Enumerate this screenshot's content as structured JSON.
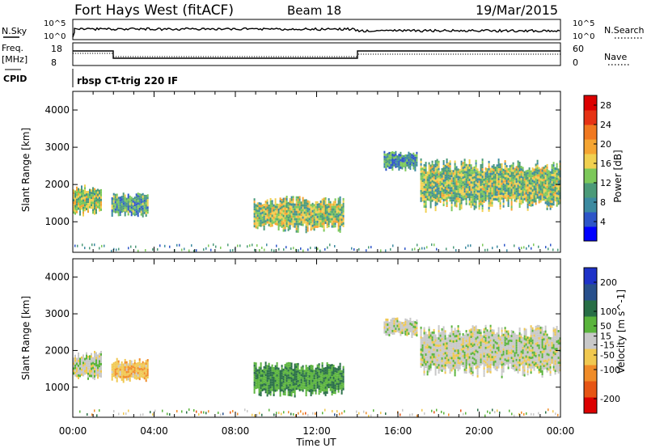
{
  "header": {
    "station": "Fort Hays West (fitACF)",
    "beam": "Beam 18",
    "date": "19/Mar/2015"
  },
  "top_panels": {
    "nsky_label": "N.Sky",
    "nsky_ticks": [
      "10^5",
      "10^0"
    ],
    "nsearch_label": "N.Search",
    "nsearch_ticks": [
      "10^5",
      "10^0"
    ],
    "freq_label": "Freq.",
    "freq_unit": "[MHz]",
    "freq_ticks": [
      "18",
      "8"
    ],
    "nave_label": "Nave",
    "nave_ticks": [
      "60",
      "0"
    ],
    "cpid_label": "CPID",
    "cpid_text": "rbsp CT-trig 220 IF"
  },
  "colors": {
    "power_scale": [
      "#0000ff",
      "#2d55c8",
      "#3c8aa0",
      "#4b9a78",
      "#7cc85a",
      "#f0d050",
      "#f5a532",
      "#f07820",
      "#e63214",
      "#dc0000"
    ],
    "velocity_scale": [
      "#1e32c8",
      "#28508c",
      "#286e46",
      "#5ab43c",
      "#c8c8c8",
      "#f0c850",
      "#f08c28",
      "#e65514",
      "#dc0000"
    ]
  },
  "chart_data": [
    {
      "type": "heatmap",
      "name": "power",
      "xlabel": "Time UT",
      "ylabel": "Slant Range [km]",
      "x_ticks": [
        "00:00",
        "04:00",
        "08:00",
        "12:00",
        "16:00",
        "20:00",
        "00:00"
      ],
      "y_ticks": [
        1000,
        2000,
        3000,
        4000
      ],
      "xlim_hours": [
        0,
        24
      ],
      "ylim_km": [
        180,
        4500
      ],
      "colorbar": {
        "label": "Power [dB]",
        "ticks": [
          4,
          8,
          12,
          16,
          20,
          24,
          28
        ],
        "range": [
          0,
          30
        ]
      },
      "echo_regions": [
        {
          "t_start": 0.0,
          "t_end": 1.4,
          "range_min": 1200,
          "range_max": 2000,
          "value": 14
        },
        {
          "t_start": 1.9,
          "t_end": 3.7,
          "range_min": 1150,
          "range_max": 1800,
          "value": 10
        },
        {
          "t_start": 8.9,
          "t_end": 13.3,
          "range_min": 750,
          "range_max": 1700,
          "value": 14
        },
        {
          "t_start": 15.3,
          "t_end": 16.9,
          "range_min": 2400,
          "range_max": 2900,
          "value": 9
        },
        {
          "t_start": 17.1,
          "t_end": 24.0,
          "range_min": 1300,
          "range_max": 2700,
          "value": 13
        }
      ]
    },
    {
      "type": "heatmap",
      "name": "velocity",
      "xlabel": "Time UT",
      "ylabel": "Slant Range [km]",
      "x_ticks": [
        "00:00",
        "04:00",
        "08:00",
        "12:00",
        "16:00",
        "20:00",
        "00:00"
      ],
      "y_ticks": [
        1000,
        2000,
        3000,
        4000
      ],
      "xlim_hours": [
        0,
        24
      ],
      "ylim_km": [
        180,
        4500
      ],
      "colorbar": {
        "label": "Velocity [m s^-1]",
        "ticks": [
          200,
          100,
          50,
          15,
          -15,
          -50,
          -100,
          -200
        ],
        "range": [
          -250,
          250
        ]
      },
      "echo_regions": [
        {
          "t_start": 0.0,
          "t_end": 1.4,
          "range_min": 1200,
          "range_max": 2000,
          "value": 0
        },
        {
          "t_start": 1.9,
          "t_end": 3.7,
          "range_min": 1150,
          "range_max": 1800,
          "value": -60
        },
        {
          "t_start": 8.9,
          "t_end": 13.3,
          "range_min": 750,
          "range_max": 1700,
          "value": 80
        },
        {
          "t_start": 15.3,
          "t_end": 16.9,
          "range_min": 2400,
          "range_max": 2900,
          "value": 0
        },
        {
          "t_start": 17.1,
          "t_end": 24.0,
          "range_min": 1300,
          "range_max": 2700,
          "value": 0
        }
      ]
    }
  ]
}
